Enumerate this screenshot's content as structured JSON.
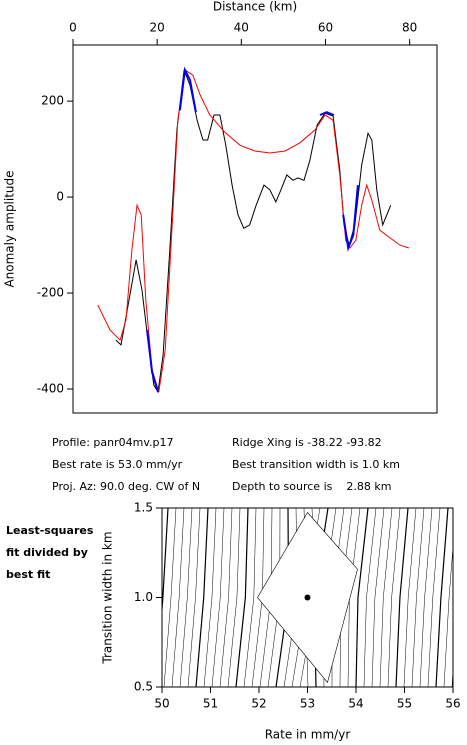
{
  "chart_data": [
    {
      "type": "line",
      "xlabel": "Distance (km)",
      "ylabel": "Anomaly amplitude",
      "xlim": [
        0,
        86.5
      ],
      "xticks": [
        0,
        20,
        40,
        60,
        80
      ],
      "ylim": [
        -450,
        317
      ],
      "yticks": [
        200,
        0,
        -200,
        -400
      ],
      "series": [
        {
          "color": "#000000",
          "x": [
            10.2,
            11.4,
            13.3,
            15,
            16.4,
            17.8,
            19.2,
            20.2,
            21.4,
            23,
            24.7,
            26.4,
            27.8,
            29.5,
            30.9,
            32,
            33.5,
            34.9,
            36.3,
            37.8,
            39.2,
            40.6,
            42,
            43.5,
            45.4,
            46.8,
            48.2,
            49.4,
            50.8,
            52.3,
            53.4,
            54.9,
            56.3,
            58,
            59.9,
            61.8,
            63.4,
            64.4,
            65.6,
            67,
            68.6,
            70.1,
            71,
            72.2,
            73.6,
            75.5
          ],
          "values": [
            -298,
            -308,
            -215,
            -131,
            -194,
            -298,
            -392,
            -406,
            -329,
            -110,
            140,
            265,
            233,
            160,
            119,
            119,
            171,
            171,
            108,
            25,
            -37,
            -65,
            -58,
            -17,
            25,
            15,
            -10,
            15,
            46,
            35,
            40,
            35,
            77,
            150,
            175,
            169,
            56,
            -58,
            -100,
            -58,
            67,
            133,
            119,
            15,
            -58,
            -17
          ]
        },
        {
          "color": "#ff0000",
          "x": [
            5.9,
            8.8,
            11.2,
            12.6,
            14,
            15.2,
            16.2,
            17.3,
            18.8,
            20.4,
            21.9,
            23.5,
            24.9,
            26.6,
            28.5,
            30.2,
            32.5,
            36.1,
            39.7,
            43.2,
            46.8,
            50.4,
            53.9,
            57.5,
            59.9,
            61.8,
            63.4,
            64.8,
            65.8,
            67.2,
            68.6,
            69.8,
            71,
            72.9,
            75.3,
            77.7,
            79.8
          ],
          "values": [
            -225,
            -277,
            -298,
            -256,
            -110,
            -17,
            -37,
            -215,
            -360,
            -406,
            -319,
            -69,
            160,
            265,
            254,
            213,
            171,
            135,
            108,
            96,
            92,
            96,
            113,
            140,
            171,
            160,
            46,
            -90,
            -106,
            -90,
            -17,
            25,
            -6,
            -69,
            -85,
            -100,
            -106
          ]
        },
        {
          "color": "#0000ff",
          "x": [
            17.6,
            18.8,
            20.2,
            null,
            25.4,
            26.6,
            27.8,
            29.2,
            null,
            58.7,
            60.3,
            62,
            null,
            64.2,
            65.4,
            66.6,
            67.7
          ],
          "values": [
            -277,
            -365,
            -406,
            null,
            181,
            265,
            244,
            177,
            null,
            171,
            177,
            171,
            null,
            -37,
            -106,
            -79,
            25
          ]
        }
      ]
    },
    {
      "type": "scatter",
      "xlabel": "Rate in mm/yr",
      "ylabel": "Transition width in km",
      "xlim": [
        50,
        56
      ],
      "xticks": [
        50,
        51,
        52,
        53,
        54,
        55,
        56
      ],
      "ylim": [
        0.5,
        1.5
      ],
      "yticks": [
        0.5,
        {
          "value": 1,
          "label": "1.0"
        },
        1.5
      ],
      "x": [
        53.0
      ],
      "values": [
        1.0
      ],
      "color": "#000000"
    }
  ],
  "info": [
    "Profile: panr04mv.p17",
    "Ridge Xing is -38.22 -93.82",
    "Best rate is 53.0 mm/yr",
    "Best transition width is 1.0 km",
    "Proj. Az: 90.0 deg. CW of N",
    "Depth to source is    2.88 km"
  ],
  "note": [
    "Least-squares",
    "fit divided by",
    "best fit"
  ]
}
